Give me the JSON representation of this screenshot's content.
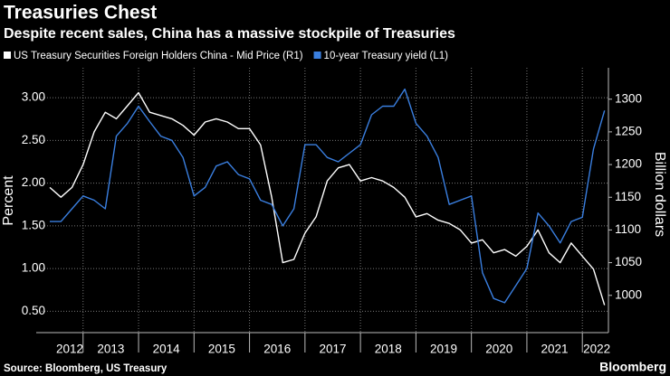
{
  "chart_data": {
    "type": "line",
    "title": "Treasuries Chest",
    "subtitle": "Despite recent sales, China has a massive stockpile of Treasuries",
    "y_label": "Percent",
    "y2_label": "Billion dollars",
    "source": "Source: Bloomberg, US Treasury",
    "brand": "Bloomberg",
    "xlim": [
      2012.4,
      2022.47
    ],
    "xticks": [
      {
        "value": 2012.76,
        "label": "2012"
      },
      {
        "value": 2013.5,
        "label": "2013"
      },
      {
        "value": 2014.5,
        "label": "2014"
      },
      {
        "value": 2015.5,
        "label": "2015"
      },
      {
        "value": 2016.5,
        "label": "2016"
      },
      {
        "value": 2017.5,
        "label": "2017"
      },
      {
        "value": 2018.5,
        "label": "2018"
      },
      {
        "value": 2019.5,
        "label": "2019"
      },
      {
        "value": 2020.5,
        "label": "2020"
      },
      {
        "value": 2021.5,
        "label": "2021"
      },
      {
        "value": 2022.26,
        "label": "2022"
      }
    ],
    "xgrid": [
      2013,
      2014,
      2015,
      2016,
      2017,
      2018,
      2019,
      2020,
      2021,
      2022
    ],
    "ylim": [
      0.25,
      3.35
    ],
    "yticks": [
      {
        "value": 0.5,
        "label": "0.50"
      },
      {
        "value": 1,
        "label": "1.00"
      },
      {
        "value": 1.5,
        "label": "1.50"
      },
      {
        "value": 2,
        "label": "2.00"
      },
      {
        "value": 2.5,
        "label": "2.50"
      },
      {
        "value": 3,
        "label": "3.00"
      }
    ],
    "y2lim": [
      943,
      1348
    ],
    "y2ticks": [
      1000,
      1050,
      1100,
      1150,
      1200,
      1250,
      1300
    ],
    "grid": true,
    "x": [
      2012.4,
      2012.6,
      2012.8,
      2013.0,
      2013.2,
      2013.4,
      2013.6,
      2013.8,
      2014.0,
      2014.2,
      2014.4,
      2014.6,
      2014.8,
      2015.0,
      2015.2,
      2015.4,
      2015.6,
      2015.8,
      2016.0,
      2016.2,
      2016.4,
      2016.6,
      2016.8,
      2017.0,
      2017.2,
      2017.4,
      2017.6,
      2017.8,
      2018.0,
      2018.2,
      2018.4,
      2018.6,
      2018.8,
      2019.0,
      2019.2,
      2019.4,
      2019.6,
      2019.8,
      2020.0,
      2020.2,
      2020.4,
      2020.6,
      2020.8,
      2021.0,
      2021.2,
      2021.4,
      2021.6,
      2021.8,
      2022.0,
      2022.2,
      2022.4
    ],
    "series": [
      {
        "name": "US Treasury Securities Foreign Holders China - Mid Price (R1)",
        "color": "#ffffff",
        "axis": "y2",
        "values": [
          1165,
          1150,
          1165,
          1200,
          1250,
          1280,
          1270,
          1290,
          1310,
          1280,
          1275,
          1270,
          1260,
          1245,
          1265,
          1270,
          1265,
          1255,
          1255,
          1230,
          1150,
          1050,
          1055,
          1095,
          1120,
          1175,
          1195,
          1200,
          1175,
          1180,
          1175,
          1165,
          1150,
          1120,
          1125,
          1115,
          1110,
          1100,
          1080,
          1085,
          1065,
          1070,
          1060,
          1075,
          1100,
          1065,
          1050,
          1080,
          1060,
          1040,
          985
        ]
      },
      {
        "name": "10-year Treasury yield (L1)",
        "color": "#3a7fe0",
        "values": [
          1.55,
          1.55,
          1.7,
          1.85,
          1.8,
          1.7,
          2.55,
          2.7,
          2.9,
          2.72,
          2.55,
          2.5,
          2.3,
          1.85,
          1.95,
          2.2,
          2.25,
          2.1,
          2.05,
          1.8,
          1.75,
          1.5,
          1.7,
          2.45,
          2.45,
          2.3,
          2.25,
          2.35,
          2.45,
          2.8,
          2.9,
          2.9,
          3.1,
          2.7,
          2.55,
          2.3,
          1.75,
          1.8,
          1.85,
          0.95,
          0.65,
          0.6,
          0.8,
          1.0,
          1.65,
          1.5,
          1.3,
          1.55,
          1.6,
          2.4,
          2.85
        ]
      }
    ]
  }
}
